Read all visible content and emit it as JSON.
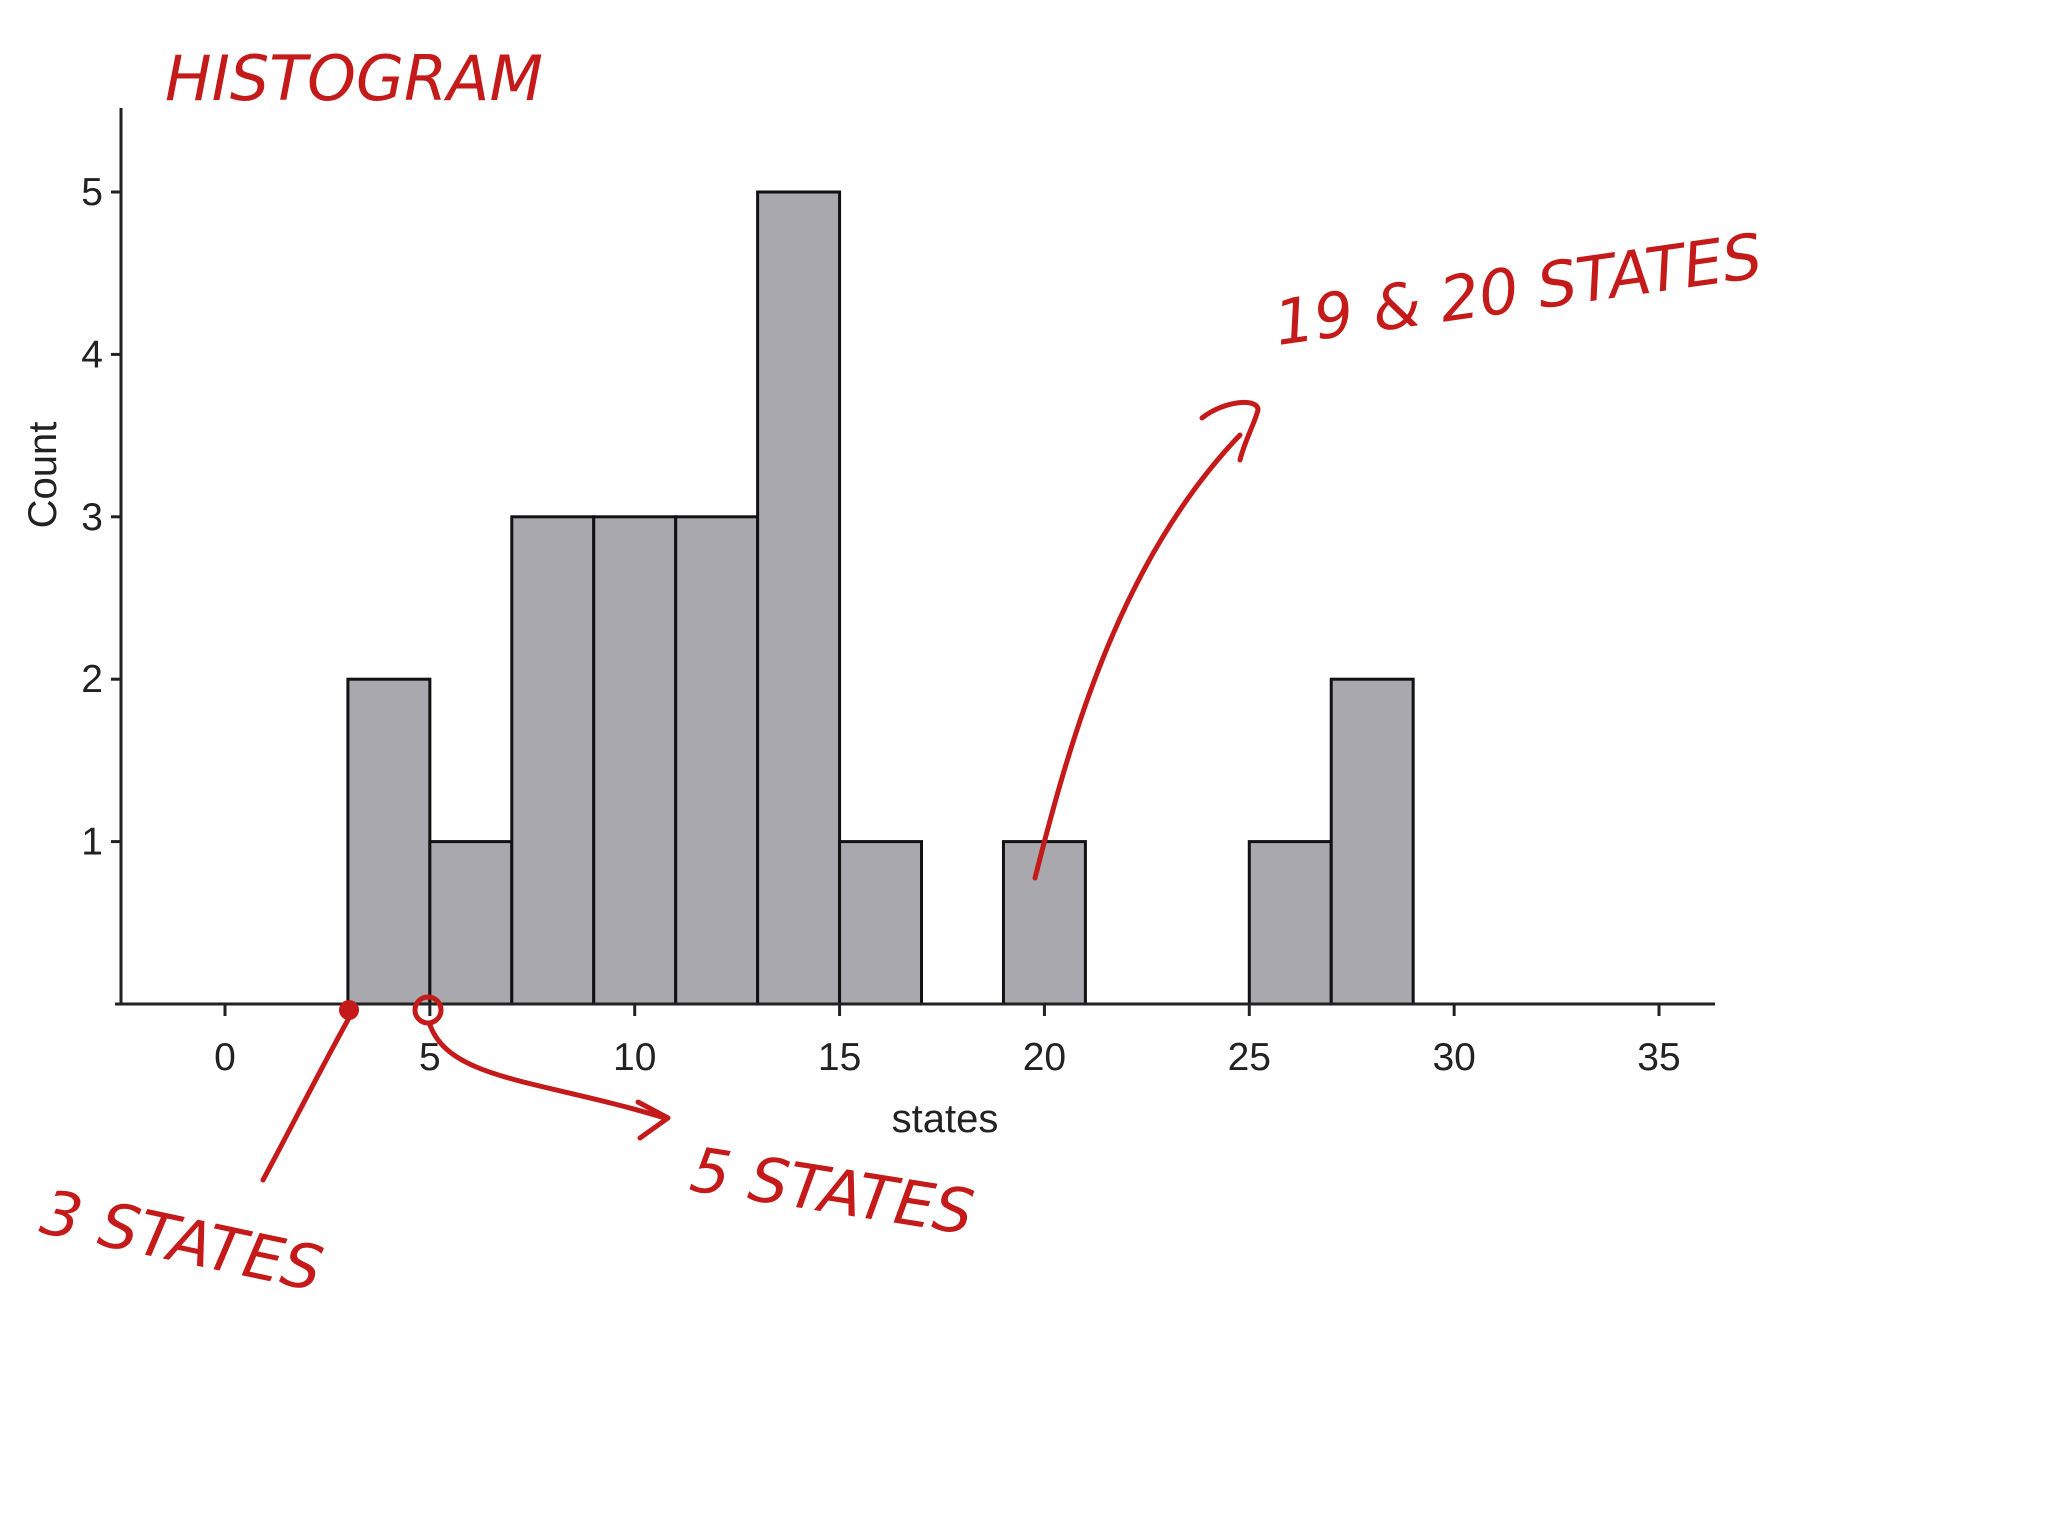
{
  "chart_data": {
    "type": "bar",
    "subtype": "histogram",
    "bin_width": 2,
    "bins": [
      {
        "start": 3,
        "end": 5,
        "count": 2
      },
      {
        "start": 5,
        "end": 7,
        "count": 1
      },
      {
        "start": 7,
        "end": 9,
        "count": 3
      },
      {
        "start": 9,
        "end": 11,
        "count": 3
      },
      {
        "start": 11,
        "end": 13,
        "count": 3
      },
      {
        "start": 13,
        "end": 15,
        "count": 5
      },
      {
        "start": 15,
        "end": 17,
        "count": 1
      },
      {
        "start": 19,
        "end": 21,
        "count": 1
      },
      {
        "start": 25,
        "end": 27,
        "count": 1
      },
      {
        "start": 27,
        "end": 29,
        "count": 2
      }
    ],
    "xlabel": "states",
    "ylabel": "Count",
    "xlim": [
      -2.5,
      36
    ],
    "ylim": [
      0,
      5.5
    ],
    "xticks": [
      0,
      5,
      10,
      15,
      20,
      25,
      30,
      35
    ],
    "yticks": [
      1,
      2,
      3,
      4,
      5
    ],
    "bar_color": "#a9a8ae",
    "grid": false
  },
  "annotations": {
    "color": "#c41a1a",
    "title": "HISTOGRAM",
    "note_right": "19 & 20 STATES",
    "note_left": "3 STATES",
    "note_mid": "5 STATES"
  }
}
